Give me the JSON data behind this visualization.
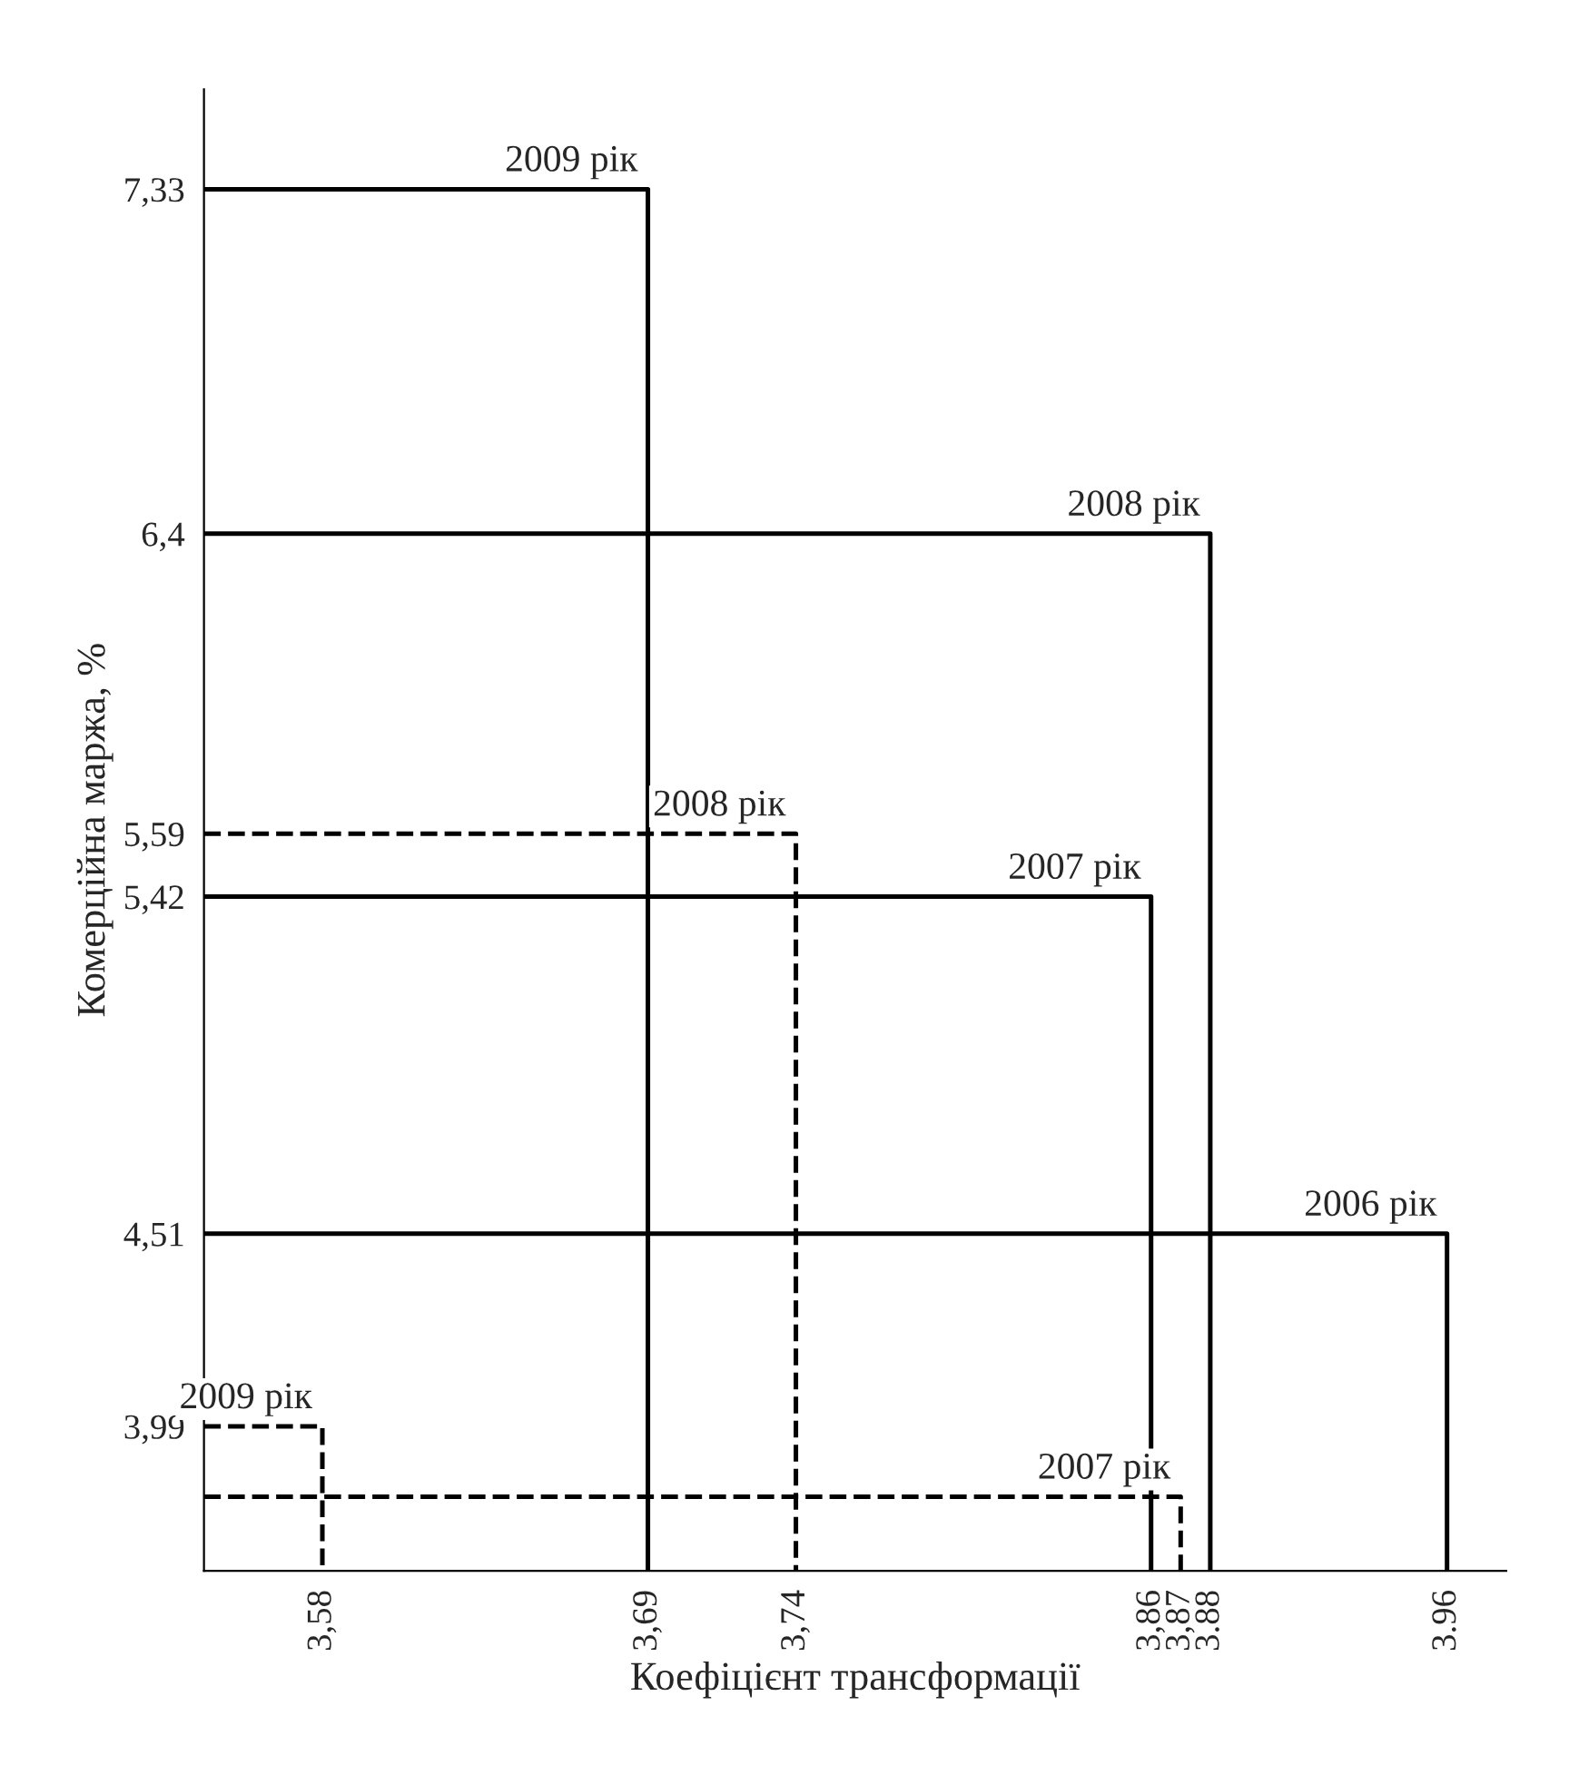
{
  "chart_data": {
    "type": "line",
    "xlabel": "Коефіцієнт трансформації",
    "ylabel": "Комерційна маржа, %",
    "xlim": [
      3.54,
      3.98
    ],
    "ylim": [
      3.6,
      7.6
    ],
    "xticks": [
      {
        "value": 3.58,
        "label": "3,58"
      },
      {
        "value": 3.69,
        "label": "3,69"
      },
      {
        "value": 3.74,
        "label": "3,74"
      },
      {
        "value": 3.86,
        "label": "3,86"
      },
      {
        "value": 3.87,
        "label": "3,87"
      },
      {
        "value": 3.88,
        "label": "3.88"
      },
      {
        "value": 3.96,
        "label": "3.96"
      }
    ],
    "yticks": [
      {
        "value": 3.8,
        "label": null
      },
      {
        "value": 3.99,
        "label": "3,99"
      },
      {
        "value": 4.51,
        "label": "4,51"
      },
      {
        "value": 5.42,
        "label": "5,42"
      },
      {
        "value": 5.59,
        "label": "5,59"
      },
      {
        "value": 6.4,
        "label": "6,4"
      },
      {
        "value": 7.33,
        "label": "7,33"
      }
    ],
    "series": [
      {
        "name": "2009 рік",
        "color": "#000000",
        "line_style": "solid",
        "x": [
          3.54,
          3.69,
          3.69
        ],
        "values": [
          7.33,
          7.33,
          3.6
        ]
      },
      {
        "name": "2008 рік",
        "color": "#000000",
        "line_style": "solid",
        "x": [
          3.54,
          3.88,
          3.88
        ],
        "values": [
          6.4,
          6.4,
          3.6
        ]
      },
      {
        "name": "2007 рік",
        "color": "#000000",
        "line_style": "solid",
        "x": [
          3.54,
          3.86,
          3.86
        ],
        "values": [
          5.42,
          5.42,
          3.6
        ]
      },
      {
        "name": "2006 рік",
        "color": "#000000",
        "line_style": "solid",
        "x": [
          3.54,
          3.96,
          3.96
        ],
        "values": [
          4.51,
          4.51,
          3.6
        ]
      },
      {
        "name": "2008 рік",
        "color": "#000000",
        "line_style": "dashed",
        "x": [
          3.54,
          3.74,
          3.74
        ],
        "values": [
          5.59,
          5.59,
          3.6
        ]
      },
      {
        "name": "2009 рік",
        "color": "#000000",
        "line_style": "dashed",
        "x": [
          3.54,
          3.58,
          3.58
        ],
        "values": [
          3.99,
          3.99,
          3.6
        ]
      },
      {
        "name": "2007 рік",
        "color": "#000000",
        "line_style": "dashed",
        "x": [
          3.54,
          3.87,
          3.87
        ],
        "values": [
          3.8,
          3.8,
          3.6
        ]
      }
    ],
    "grid": false,
    "legend": false,
    "marker": "none"
  }
}
